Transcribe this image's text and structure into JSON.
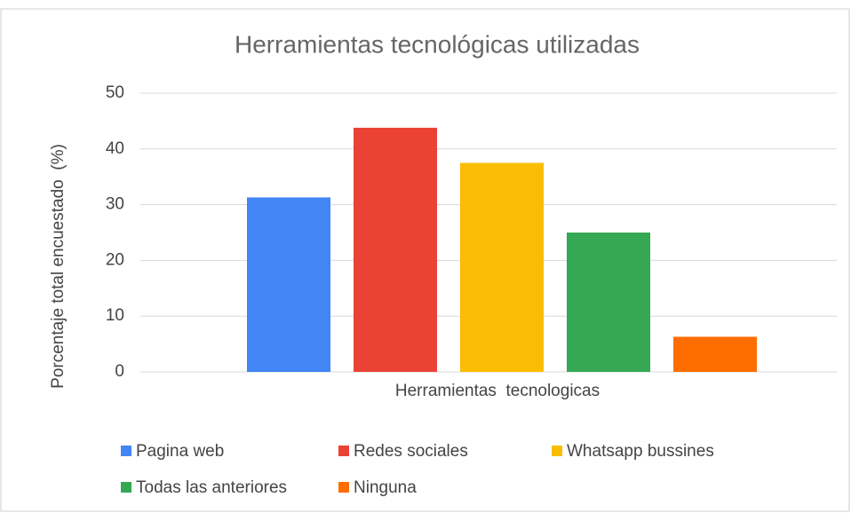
{
  "chart_data": {
    "type": "bar",
    "title": "Herramientas tecnológicas utilizadas",
    "y_label": "Porcentaje total encuestado  (%)",
    "categories": [
      "Herramientas  tecnologicas"
    ],
    "series": [
      {
        "name": "Pagina web",
        "color": "#4285f4",
        "values": [
          31.3
        ]
      },
      {
        "name": "Redes sociales",
        "color": "#ea4335",
        "values": [
          43.8
        ]
      },
      {
        "name": "Whatsapp bussines",
        "color": "#fbbc04",
        "values": [
          37.5
        ]
      },
      {
        "name": "Todas las anteriores",
        "color": "#34a853",
        "values": [
          25
        ]
      },
      {
        "name": "Ninguna",
        "color": "#ff6d01",
        "values": [
          6.3
        ]
      }
    ],
    "ylim": [
      0,
      50
    ],
    "yticks": [
      0,
      10,
      20,
      30,
      40,
      50
    ],
    "grid": true,
    "legend": "bottom"
  }
}
